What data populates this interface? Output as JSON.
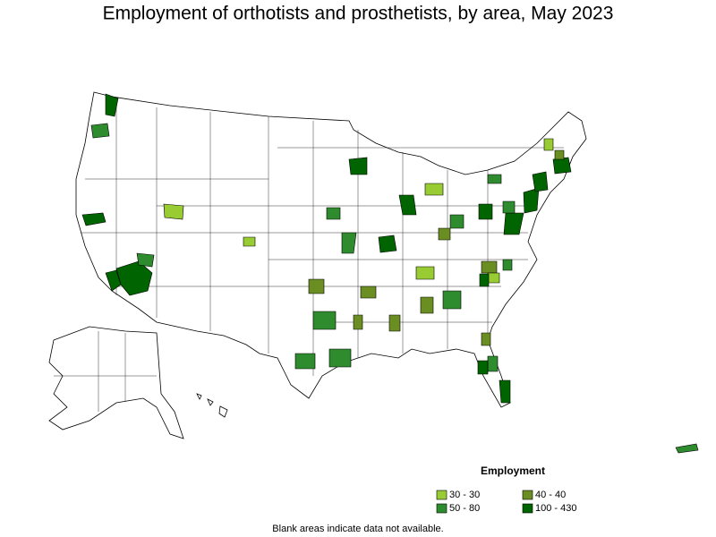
{
  "title": "Employment of orthotists and prosthetists, by area, May 2023",
  "legend": {
    "title": "Employment",
    "items": [
      {
        "label": "30 - 30",
        "color": "#99cc33"
      },
      {
        "label": "40 - 40",
        "color": "#6b8e23"
      },
      {
        "label": "50 - 80",
        "color": "#2e8b2e"
      },
      {
        "label": "100 - 430",
        "color": "#006400"
      }
    ]
  },
  "note": "Blank areas indicate data not available."
}
